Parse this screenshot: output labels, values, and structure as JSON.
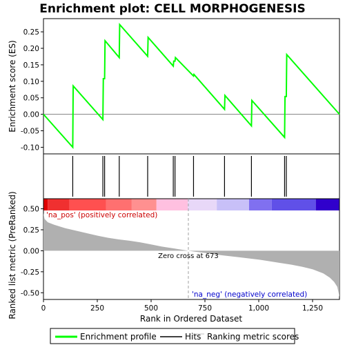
{
  "chart_data": {
    "type": "line",
    "title": "Enrichment plot: CELL MORPHOGENESIS",
    "top_panel": {
      "ylabel": "Enrichment score (ES)",
      "ylim": [
        -0.12,
        0.29
      ],
      "yticks": [
        -0.1,
        -0.05,
        0.0,
        0.05,
        0.1,
        0.15,
        0.2,
        0.25
      ],
      "ytick_labels": [
        "-0.10",
        "-0.05",
        "0.00",
        "0.05",
        "0.10",
        "0.15",
        "0.20",
        "0.25"
      ],
      "series": [
        {
          "name": "Enrichment profile",
          "color": "#00ff00",
          "x": [
            0,
            136,
            138,
            276,
            278,
            284,
            286,
            352,
            354,
            484,
            486,
            603,
            605,
            611,
            613,
            697,
            699,
            841,
            843,
            966,
            968,
            1120,
            1122,
            1128,
            1130,
            1375
          ],
          "y": [
            0.0,
            -0.1,
            0.086,
            -0.016,
            0.108,
            0.108,
            0.223,
            0.172,
            0.272,
            0.176,
            0.233,
            0.146,
            0.161,
            0.161,
            0.172,
            0.116,
            0.121,
            0.015,
            0.057,
            -0.035,
            0.042,
            -0.07,
            0.054,
            0.054,
            0.181,
            0.0
          ]
        }
      ]
    },
    "hits": {
      "name": "Hits",
      "positions": [
        136,
        276,
        284,
        352,
        484,
        603,
        611,
        697,
        841,
        966,
        1120,
        1128
      ]
    },
    "bottom_panel": {
      "ylabel": "Ranked list metric (PreRanked)",
      "ylim": [
        -0.58,
        0.62
      ],
      "yticks": [
        -0.5,
        -0.25,
        0.0,
        0.25,
        0.5
      ],
      "ytick_labels": [
        "-0.50",
        "-0.25",
        "0.00",
        "0.25",
        "0.50"
      ],
      "series_name": "Ranking metric scores",
      "metric_profile": {
        "x": [
          0,
          5,
          20,
          50,
          100,
          150,
          200,
          250,
          300,
          350,
          400,
          450,
          500,
          550,
          600,
          650,
          673,
          700,
          750,
          800,
          850,
          900,
          950,
          1000,
          1050,
          1100,
          1150,
          1200,
          1250,
          1300,
          1330,
          1350,
          1365,
          1375
        ],
        "y": [
          0.45,
          0.38,
          0.34,
          0.31,
          0.27,
          0.24,
          0.21,
          0.18,
          0.155,
          0.135,
          0.12,
          0.1,
          0.075,
          0.05,
          0.03,
          0.01,
          0.0,
          -0.01,
          -0.025,
          -0.045,
          -0.06,
          -0.075,
          -0.09,
          -0.105,
          -0.125,
          -0.145,
          -0.165,
          -0.19,
          -0.22,
          -0.27,
          -0.32,
          -0.37,
          -0.43,
          -0.55
        ]
      },
      "pos_label": "'na_pos' (positively correlated)",
      "neg_label": "'na_neg' (negatively correlated)",
      "zero_cross_label": "Zero cross at 673",
      "zero_cross": 673
    },
    "xlabel": "Rank in Ordered Dataset",
    "xlim": [
      0,
      1375
    ],
    "xticks": [
      0,
      250,
      500,
      750,
      1000,
      1250
    ],
    "xtick_labels": [
      "0",
      "250",
      "500",
      "750",
      "1,000",
      "1,250"
    ],
    "colorbar": {
      "segments": [
        {
          "x0": 0,
          "x1": 20,
          "color": "#e00000"
        },
        {
          "x0": 20,
          "x1": 120,
          "color": "#f03030"
        },
        {
          "x0": 120,
          "x1": 290,
          "color": "#ff5050"
        },
        {
          "x0": 290,
          "x1": 410,
          "color": "#ff7070"
        },
        {
          "x0": 410,
          "x1": 525,
          "color": "#ff9090"
        },
        {
          "x0": 525,
          "x1": 670,
          "color": "#ffc0e0"
        },
        {
          "x0": 670,
          "x1": 805,
          "color": "#e8d8f8"
        },
        {
          "x0": 805,
          "x1": 955,
          "color": "#c8c0f8"
        },
        {
          "x0": 955,
          "x1": 1060,
          "color": "#8070f0"
        },
        {
          "x0": 1060,
          "x1": 1265,
          "color": "#6050e8"
        },
        {
          "x0": 1265,
          "x1": 1375,
          "color": "#3000cc"
        }
      ]
    },
    "legend": {
      "entries": [
        {
          "label": "Enrichment profile",
          "color": "#00ff00"
        },
        {
          "label": "Hits",
          "color": "#000000"
        },
        {
          "label": "Ranking metric scores",
          "color": "#c0c0c0"
        }
      ]
    }
  }
}
